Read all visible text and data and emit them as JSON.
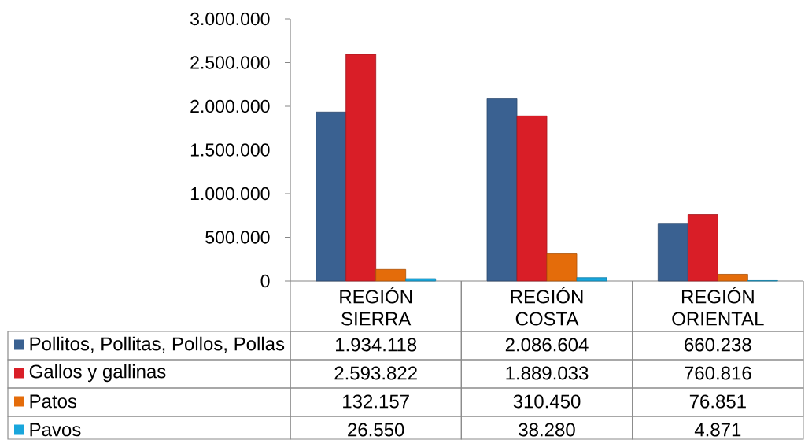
{
  "chart_data": {
    "type": "bar",
    "categories": [
      "REGIÓN SIERRA",
      "REGIÓN COSTA",
      "REGIÓN ORIENTAL"
    ],
    "series": [
      {
        "name": "Pollitos, Pollitas, Pollos, Pollas",
        "color": "#3a6191",
        "values": [
          1934118,
          2086604,
          660238
        ],
        "value_labels": [
          "1.934.118",
          "2.086.604",
          "660.238"
        ]
      },
      {
        "name": "Gallos y gallinas",
        "color": "#d91e27",
        "values": [
          2593822,
          1889033,
          760816
        ],
        "value_labels": [
          "2.593.822",
          "1.889.033",
          "760.816"
        ]
      },
      {
        "name": "Patos",
        "color": "#e46c0a",
        "values": [
          132157,
          310450,
          76851
        ],
        "value_labels": [
          "132.157",
          "310.450",
          "76.851"
        ]
      },
      {
        "name": "Pavos",
        "color": "#19a6dc",
        "values": [
          26550,
          38280,
          4871
        ],
        "value_labels": [
          "26.550",
          "38.280",
          "4.871"
        ]
      }
    ],
    "ylim": [
      0,
      3000000
    ],
    "yticks": [
      0,
      {
        "value": 500000,
        "label": "500.000"
      },
      {
        "value": 1000000,
        "label": "1.000.000"
      },
      {
        "value": 1500000,
        "label": "1.500.000"
      },
      {
        "value": 2000000,
        "label": "2.000.000"
      },
      {
        "value": 2500000,
        "label": "2.500.000"
      },
      {
        "value": 3000000,
        "label": "3.000.000"
      }
    ],
    "legend": "bottom left"
  }
}
